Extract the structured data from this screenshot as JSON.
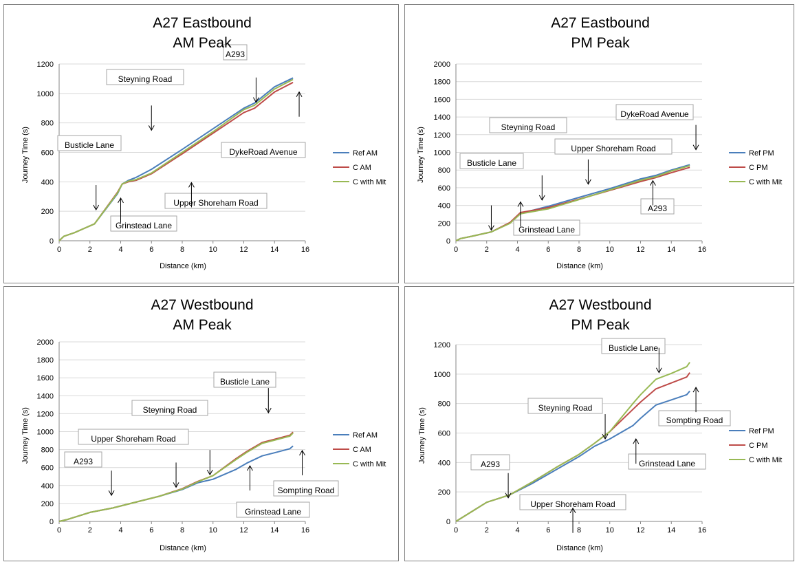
{
  "chart_data": [
    {
      "type": "line",
      "title_lines": [
        "A27 Eastbound",
        "AM Peak"
      ],
      "xlabel": "Distance (km)",
      "ylabel": "Journey Time (s)",
      "xlim": [
        0,
        16
      ],
      "xticks": [
        0,
        2,
        4,
        6,
        8,
        10,
        12,
        14,
        16
      ],
      "ylim": [
        0,
        1200
      ],
      "yticks": [
        0,
        200,
        400,
        600,
        800,
        1000,
        1200
      ],
      "legend_position": "right",
      "series": [
        {
          "name": "Ref AM",
          "color": "#4a7ebb",
          "x": [
            0,
            0.3,
            1.0,
            2.3,
            3.8,
            4.1,
            4.5,
            5.0,
            6.0,
            8.0,
            10.0,
            12.0,
            12.7,
            14.0,
            15.2
          ],
          "y": [
            0,
            30,
            55,
            115,
            320,
            385,
            410,
            430,
            485,
            620,
            760,
            900,
            935,
            1045,
            1105
          ]
        },
        {
          "name": "C AM",
          "color": "#be4b48",
          "x": [
            0,
            0.3,
            1.0,
            2.3,
            3.8,
            4.1,
            4.5,
            5.0,
            6.0,
            8.0,
            10.0,
            12.0,
            12.7,
            14.0,
            15.2
          ],
          "y": [
            0,
            30,
            55,
            115,
            330,
            385,
            400,
            410,
            455,
            590,
            730,
            870,
            900,
            1010,
            1075
          ]
        },
        {
          "name": "C with Mit",
          "color": "#98b954",
          "x": [
            0,
            0.3,
            1.0,
            2.3,
            3.8,
            4.1,
            4.5,
            5.0,
            6.0,
            8.0,
            10.0,
            12.0,
            12.7,
            14.0,
            15.2
          ],
          "y": [
            0,
            30,
            55,
            115,
            325,
            385,
            405,
            415,
            460,
            600,
            740,
            890,
            920,
            1030,
            1095
          ]
        }
      ],
      "annotations": [
        {
          "text": "Steyning Road",
          "x": 6.0,
          "y": 750,
          "dir": "down"
        },
        {
          "text": "A293",
          "x": 12.8,
          "y": 940,
          "dir": "down"
        },
        {
          "text": "Busticle Lane",
          "x": 2.4,
          "y": 210,
          "dir": "down"
        },
        {
          "text": "DykeRoad Avenue",
          "x": 15.6,
          "y": 1010,
          "dir": "up"
        },
        {
          "text": "Upper Shoreham Road",
          "x": 8.6,
          "y": 395,
          "dir": "up"
        },
        {
          "text": "Grinstead Lane",
          "x": 4.0,
          "y": 290,
          "dir": "up"
        }
      ]
    },
    {
      "type": "line",
      "title_lines": [
        "A27 Eastbound",
        "PM Peak"
      ],
      "xlabel": "Distance (km)",
      "ylabel": "Journey Time (s)",
      "xlim": [
        0,
        16
      ],
      "xticks": [
        0,
        2,
        4,
        6,
        8,
        10,
        12,
        14,
        16
      ],
      "ylim": [
        0,
        2000
      ],
      "yticks": [
        0,
        200,
        400,
        600,
        800,
        1000,
        1200,
        1400,
        1600,
        1800,
        2000
      ],
      "legend_position": "right",
      "series": [
        {
          "name": "Ref PM",
          "color": "#4a7ebb",
          "x": [
            0,
            0.3,
            1.0,
            2.3,
            3.5,
            4.2,
            6.0,
            8.0,
            10.0,
            12.0,
            13.0,
            14.0,
            15.2
          ],
          "y": [
            0,
            25,
            50,
            100,
            200,
            310,
            390,
            490,
            590,
            700,
            740,
            800,
            860
          ]
        },
        {
          "name": "C PM",
          "color": "#be4b48",
          "x": [
            0,
            0.3,
            1.0,
            2.3,
            3.5,
            4.2,
            6.0,
            8.0,
            10.0,
            12.0,
            13.0,
            14.0,
            15.2
          ],
          "y": [
            0,
            25,
            50,
            100,
            205,
            320,
            375,
            470,
            570,
            670,
            715,
            770,
            830
          ]
        },
        {
          "name": "C with Mit",
          "color": "#98b954",
          "x": [
            0,
            0.3,
            1.0,
            2.3,
            3.5,
            4.2,
            6.0,
            8.0,
            10.0,
            12.0,
            13.0,
            14.0,
            15.2
          ],
          "y": [
            0,
            25,
            50,
            100,
            195,
            305,
            360,
            465,
            575,
            685,
            725,
            790,
            850
          ]
        }
      ],
      "annotations": [
        {
          "text": "Busticle Lane",
          "x": 2.3,
          "y": 120,
          "dir": "down"
        },
        {
          "text": "Steyning Road",
          "x": 5.6,
          "y": 460,
          "dir": "down"
        },
        {
          "text": "Upper Shoreham Road",
          "x": 8.6,
          "y": 640,
          "dir": "down"
        },
        {
          "text": "DykeRoad Avenue",
          "x": 15.6,
          "y": 1030,
          "dir": "down"
        },
        {
          "text": "Grinstead Lane",
          "x": 4.2,
          "y": 440,
          "dir": "up"
        },
        {
          "text": "A293",
          "x": 12.8,
          "y": 680,
          "dir": "up"
        }
      ]
    },
    {
      "type": "line",
      "title_lines": [
        "A27 Westbound",
        "AM Peak"
      ],
      "xlabel": "Distance (km)",
      "ylabel": "Journey Time (s)",
      "xlim": [
        0,
        16
      ],
      "xticks": [
        0,
        2,
        4,
        6,
        8,
        10,
        12,
        14,
        16
      ],
      "ylim": [
        0,
        2000
      ],
      "yticks": [
        0,
        200,
        400,
        600,
        800,
        1000,
        1200,
        1400,
        1600,
        1800,
        2000
      ],
      "legend_position": "right",
      "series": [
        {
          "name": "Ref AM",
          "color": "#4a7ebb",
          "x": [
            0,
            0.5,
            2.0,
            3.5,
            5.0,
            6.5,
            8.0,
            9.0,
            10.0,
            11.5,
            12.2,
            13.2,
            14.0,
            15.0,
            15.2
          ],
          "y": [
            0,
            20,
            100,
            150,
            215,
            280,
            355,
            430,
            470,
            580,
            650,
            730,
            765,
            810,
            840
          ]
        },
        {
          "name": "C AM",
          "color": "#be4b48",
          "x": [
            0,
            0.5,
            2.0,
            3.5,
            5.0,
            6.5,
            8.0,
            9.0,
            10.0,
            11.5,
            12.2,
            13.2,
            14.0,
            15.0,
            15.2
          ],
          "y": [
            0,
            20,
            100,
            150,
            215,
            280,
            365,
            445,
            510,
            700,
            780,
            880,
            915,
            960,
            995
          ]
        },
        {
          "name": "C with Mit",
          "color": "#98b954",
          "x": [
            0,
            0.5,
            2.0,
            3.5,
            5.0,
            6.5,
            8.0,
            9.0,
            10.0,
            11.5,
            12.2,
            13.2,
            14.0,
            15.0,
            15.2
          ],
          "y": [
            0,
            20,
            100,
            150,
            215,
            280,
            360,
            440,
            510,
            690,
            770,
            870,
            905,
            950,
            985
          ]
        }
      ],
      "annotations": [
        {
          "text": "Busticle Lane",
          "x": 13.6,
          "y": 1210,
          "dir": "down"
        },
        {
          "text": "Steyning Road",
          "x": 9.8,
          "y": 520,
          "dir": "down"
        },
        {
          "text": "Upper Shoreham Road",
          "x": 7.6,
          "y": 380,
          "dir": "down"
        },
        {
          "text": "A293",
          "x": 3.4,
          "y": 290,
          "dir": "down"
        },
        {
          "text": "Grinstead Lane",
          "x": 12.4,
          "y": 620,
          "dir": "up"
        },
        {
          "text": "Sompting Road",
          "x": 15.8,
          "y": 790,
          "dir": "up"
        }
      ]
    },
    {
      "type": "line",
      "title_lines": [
        "A27 Westbound",
        "PM Peak"
      ],
      "xlabel": "Distance (km)",
      "ylabel": "Journey Time (s)",
      "xlim": [
        0,
        16
      ],
      "xticks": [
        0,
        2,
        4,
        6,
        8,
        10,
        12,
        14,
        16
      ],
      "ylim": [
        0,
        1200
      ],
      "yticks": [
        0,
        200,
        400,
        600,
        800,
        1000,
        1200
      ],
      "legend_position": "right",
      "series": [
        {
          "name": "Ref PM",
          "color": "#4a7ebb",
          "x": [
            0,
            1.0,
            2.0,
            3.5,
            5.0,
            6.5,
            8.0,
            9.0,
            10.0,
            11.5,
            12.0,
            13.0,
            14.0,
            15.0,
            15.2
          ],
          "y": [
            0,
            65,
            130,
            180,
            260,
            350,
            440,
            510,
            560,
            650,
            700,
            790,
            825,
            860,
            885
          ]
        },
        {
          "name": "C PM",
          "color": "#be4b48",
          "x": [
            0,
            1.0,
            2.0,
            3.5,
            5.0,
            6.5,
            8.0,
            9.0,
            10.0,
            11.5,
            12.0,
            13.0,
            14.0,
            15.0,
            15.2
          ],
          "y": [
            0,
            65,
            130,
            180,
            270,
            365,
            455,
            530,
            610,
            760,
            810,
            900,
            940,
            980,
            1010
          ]
        },
        {
          "name": "C with Mit",
          "color": "#98b954",
          "x": [
            0,
            1.0,
            2.0,
            3.5,
            5.0,
            6.5,
            8.0,
            9.0,
            10.0,
            11.5,
            12.0,
            13.0,
            14.0,
            15.0,
            15.2
          ],
          "y": [
            0,
            65,
            130,
            180,
            270,
            365,
            455,
            530,
            610,
            800,
            860,
            965,
            1005,
            1050,
            1080
          ]
        }
      ],
      "annotations": [
        {
          "text": "Busticle Lane",
          "x": 13.2,
          "y": 1010,
          "dir": "down"
        },
        {
          "text": "Steyning Road",
          "x": 9.7,
          "y": 560,
          "dir": "down"
        },
        {
          "text": "A293",
          "x": 3.4,
          "y": 160,
          "dir": "down"
        },
        {
          "text": "Sompting Road",
          "x": 15.6,
          "y": 910,
          "dir": "up"
        },
        {
          "text": "Grinstead Lane",
          "x": 11.7,
          "y": 560,
          "dir": "up"
        },
        {
          "text": "Upper Shoreham Road",
          "x": 7.6,
          "y": 90,
          "dir": "up"
        }
      ]
    }
  ]
}
